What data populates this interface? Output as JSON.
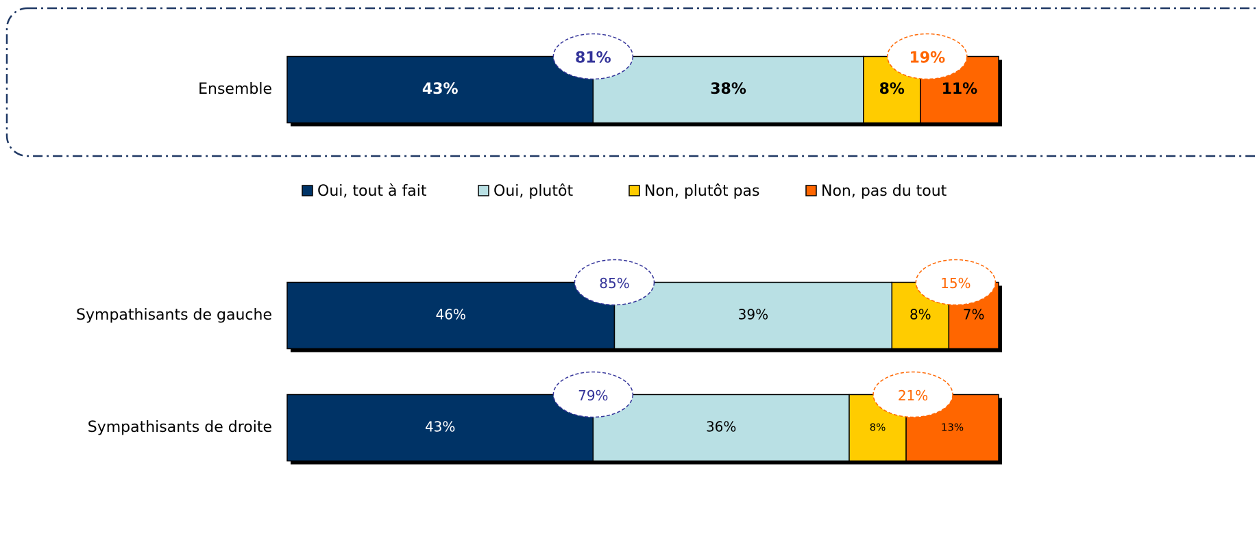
{
  "chart_data": {
    "type": "stacked_bar_horizontal",
    "categories": [
      "Ensemble",
      "Sympathisants de gauche",
      "Sympathisants de droite"
    ],
    "series": [
      {
        "name": "Oui, tout à fait",
        "color": "#003366",
        "values": [
          43,
          46,
          43
        ],
        "value_labels": [
          "43%",
          "46%",
          "43%"
        ]
      },
      {
        "name": "Oui, plutôt",
        "color": "#b9e0e4",
        "values": [
          38,
          39,
          36
        ],
        "value_labels": [
          "38%",
          "39%",
          "36%"
        ]
      },
      {
        "name": "Non, plutôt pas",
        "color": "#ffcc00",
        "values": [
          8,
          8,
          8
        ],
        "value_labels": [
          "8%",
          "8%",
          "8%"
        ]
      },
      {
        "name": "Non, pas du tout",
        "color": "#ff6600",
        "values": [
          11,
          7,
          13
        ],
        "value_labels": [
          "11%",
          "7%",
          "13%"
        ]
      }
    ],
    "totals": [
      {
        "color": "#333399",
        "values": [
          81,
          85,
          79
        ],
        "value_labels": [
          "81%",
          "85%",
          "79%"
        ]
      },
      {
        "color": "#ff6600",
        "values": [
          19,
          15,
          21
        ],
        "value_labels": [
          "19%",
          "15%",
          "21%"
        ]
      }
    ],
    "legend": "top"
  }
}
